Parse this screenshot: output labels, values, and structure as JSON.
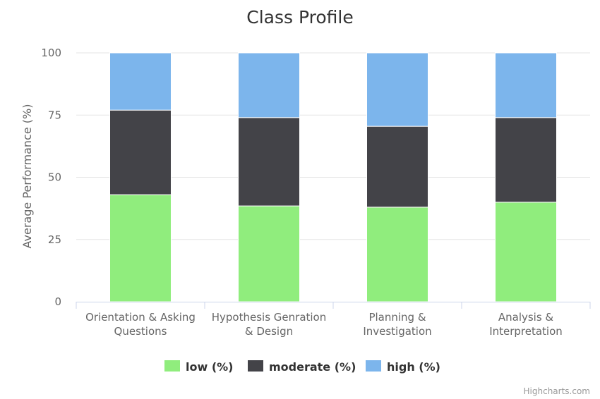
{
  "chart_data": {
    "type": "bar",
    "stacked": true,
    "title": "Class Profile",
    "ylabel": "Average Performance (%)",
    "xlabel": "",
    "ylim": [
      0,
      100
    ],
    "yticks": [
      0,
      25,
      50,
      75,
      100
    ],
    "grid": true,
    "legend_position": "bottom",
    "categories": [
      [
        "Orientation & Asking",
        "Questions"
      ],
      [
        "Hypothesis Genration",
        "& Design"
      ],
      [
        "Planning &",
        "Investigation"
      ],
      [
        "Analysis &",
        "Interpretation"
      ]
    ],
    "series": [
      {
        "name": "low (%)",
        "color": "#90ed7d",
        "values": [
          43,
          38.5,
          38,
          40
        ]
      },
      {
        "name": "moderate (%)",
        "color": "#434348",
        "values": [
          34,
          35.5,
          32.5,
          34
        ]
      },
      {
        "name": "high (%)",
        "color": "#7cb5ec",
        "values": [
          23,
          26,
          29.5,
          26
        ]
      }
    ]
  },
  "credits": "Highcharts.com"
}
